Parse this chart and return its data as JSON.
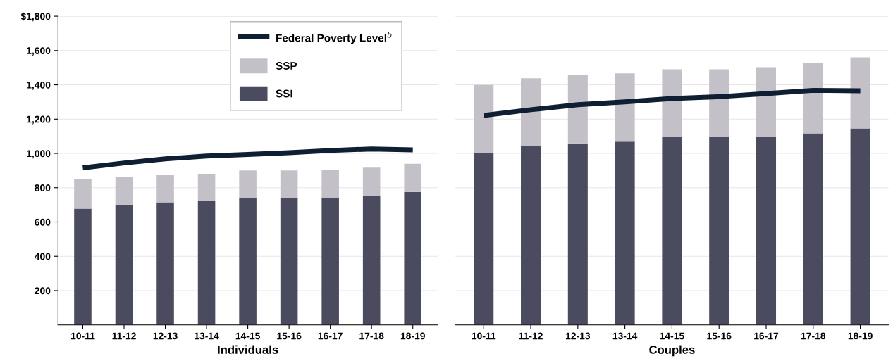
{
  "chart_data": [
    {
      "type": "bar",
      "stacked": true,
      "xlabel": "Individuals",
      "categories": [
        "10-11",
        "11-12",
        "12-13",
        "13-14",
        "14-15",
        "15-16",
        "16-17",
        "17-18",
        "18-19"
      ],
      "series": [
        {
          "name": "SSI",
          "color": "#4b4b60",
          "values": [
            678,
            702,
            715,
            722,
            737,
            737,
            738,
            753,
            775
          ]
        },
        {
          "name": "SSP",
          "color": "#c3c0c8",
          "values": [
            174,
            159,
            161,
            159,
            164,
            164,
            166,
            164,
            165
          ]
        },
        {
          "name": "Federal Poverty Level$^{b}$",
          "type": "line",
          "color": "#0f1f33",
          "values": [
            916,
            944,
            968,
            985,
            994,
            1004,
            1017,
            1026,
            1021
          ]
        }
      ],
      "ylim": [
        0,
        1800
      ],
      "yticks": [
        200,
        400,
        600,
        800,
        {
          "value": 1000,
          "label": "1,000"
        },
        {
          "value": 1200,
          "label": "1,200"
        },
        {
          "value": 1400,
          "label": "1,400"
        },
        {
          "value": 1600,
          "label": "1,600"
        },
        {
          "value": 1800,
          "label": "$1,800"
        }
      ],
      "grid": "y",
      "legend": "top right",
      "marker": "none",
      "line_style": "solid"
    },
    {
      "type": "bar",
      "stacked": true,
      "xlabel": "Couples",
      "categories": [
        "10-11",
        "11-12",
        "12-13",
        "13-14",
        "14-15",
        "15-16",
        "16-17",
        "17-18",
        "18-19"
      ],
      "series": [
        {
          "color": "#4b4b60",
          "values": [
            1002,
            1042,
            1059,
            1069,
            1094,
            1094,
            1094,
            1117,
            1146
          ]
        },
        {
          "color": "#c3c0c8",
          "values": [
            397,
            396,
            398,
            398,
            396,
            396,
            409,
            408,
            414
          ]
        },
        {
          "type": "line",
          "color": "#0f1f33",
          "values": [
            1222,
            1255,
            1284,
            1301,
            1320,
            1331,
            1349,
            1368,
            1365
          ]
        }
      ],
      "ylim": [
        0,
        1800
      ],
      "yticks": [
        200,
        400,
        600,
        800,
        1000,
        1200,
        1400,
        1600,
        1800
      ],
      "grid": "y",
      "tick_labels": "x",
      "marker": "none",
      "line_style": "solid"
    }
  ]
}
